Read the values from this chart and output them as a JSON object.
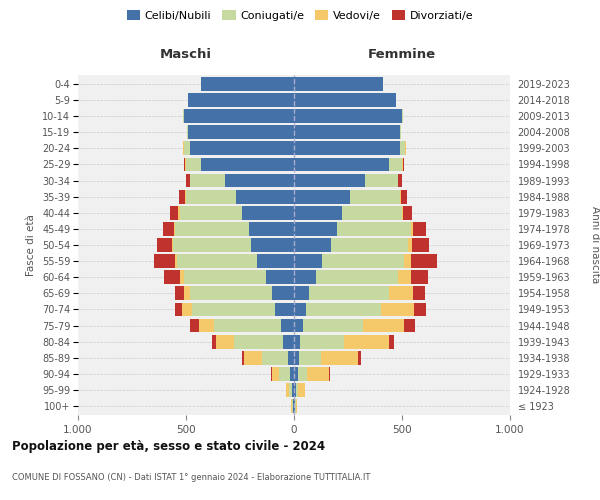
{
  "age_groups": [
    "100+",
    "95-99",
    "90-94",
    "85-89",
    "80-84",
    "75-79",
    "70-74",
    "65-69",
    "60-64",
    "55-59",
    "50-54",
    "45-49",
    "40-44",
    "35-39",
    "30-34",
    "25-29",
    "20-24",
    "15-19",
    "10-14",
    "5-9",
    "0-4"
  ],
  "birth_years": [
    "≤ 1923",
    "1924-1928",
    "1929-1933",
    "1934-1938",
    "1939-1943",
    "1944-1948",
    "1949-1953",
    "1954-1958",
    "1959-1963",
    "1964-1968",
    "1969-1973",
    "1974-1978",
    "1979-1983",
    "1984-1988",
    "1989-1993",
    "1994-1998",
    "1999-2003",
    "2004-2008",
    "2009-2013",
    "2014-2018",
    "2019-2023"
  ],
  "maschi": {
    "celibi": [
      5,
      10,
      20,
      30,
      50,
      60,
      90,
      100,
      130,
      170,
      200,
      210,
      240,
      270,
      320,
      430,
      480,
      490,
      510,
      490,
      430
    ],
    "coniugati": [
      5,
      15,
      50,
      120,
      230,
      310,
      380,
      380,
      380,
      370,
      360,
      340,
      290,
      230,
      160,
      70,
      30,
      5,
      5,
      0,
      0
    ],
    "vedovi": [
      2,
      10,
      30,
      80,
      80,
      70,
      50,
      30,
      20,
      10,
      5,
      5,
      5,
      3,
      3,
      5,
      2,
      0,
      0,
      0,
      0
    ],
    "divorziati": [
      0,
      0,
      5,
      10,
      20,
      40,
      30,
      40,
      70,
      100,
      70,
      50,
      40,
      30,
      15,
      5,
      3,
      0,
      0,
      0,
      0
    ]
  },
  "femmine": {
    "nubili": [
      5,
      10,
      20,
      25,
      30,
      40,
      55,
      70,
      100,
      130,
      170,
      200,
      220,
      260,
      330,
      440,
      490,
      490,
      500,
      470,
      410
    ],
    "coniugate": [
      3,
      10,
      40,
      100,
      200,
      280,
      350,
      370,
      380,
      380,
      360,
      340,
      280,
      230,
      150,
      60,
      25,
      5,
      5,
      0,
      0
    ],
    "vedove": [
      5,
      30,
      100,
      170,
      210,
      190,
      150,
      110,
      60,
      30,
      15,
      10,
      5,
      5,
      3,
      3,
      2,
      0,
      0,
      0,
      0
    ],
    "divorziate": [
      0,
      0,
      5,
      15,
      25,
      50,
      55,
      55,
      80,
      120,
      80,
      60,
      40,
      30,
      15,
      5,
      3,
      0,
      0,
      0,
      0
    ]
  },
  "colors": {
    "celibi": "#4472a8",
    "coniugati": "#c5d9a0",
    "vedovi": "#f5c96a",
    "divorziati": "#c0322d"
  },
  "xlim": 1000,
  "title": "Popolazione per età, sesso e stato civile - 2024",
  "subtitle": "COMUNE DI FOSSANO (CN) - Dati ISTAT 1° gennaio 2024 - Elaborazione TUTTITALIA.IT",
  "xlabel_left": "Maschi",
  "xlabel_right": "Femmine",
  "ylabel_left": "Fasce di età",
  "ylabel_right": "Anni di nascita",
  "legend_labels": [
    "Celibi/Nubili",
    "Coniugati/e",
    "Vedovi/e",
    "Divorziati/e"
  ],
  "bg_color": "#f0f0f0"
}
